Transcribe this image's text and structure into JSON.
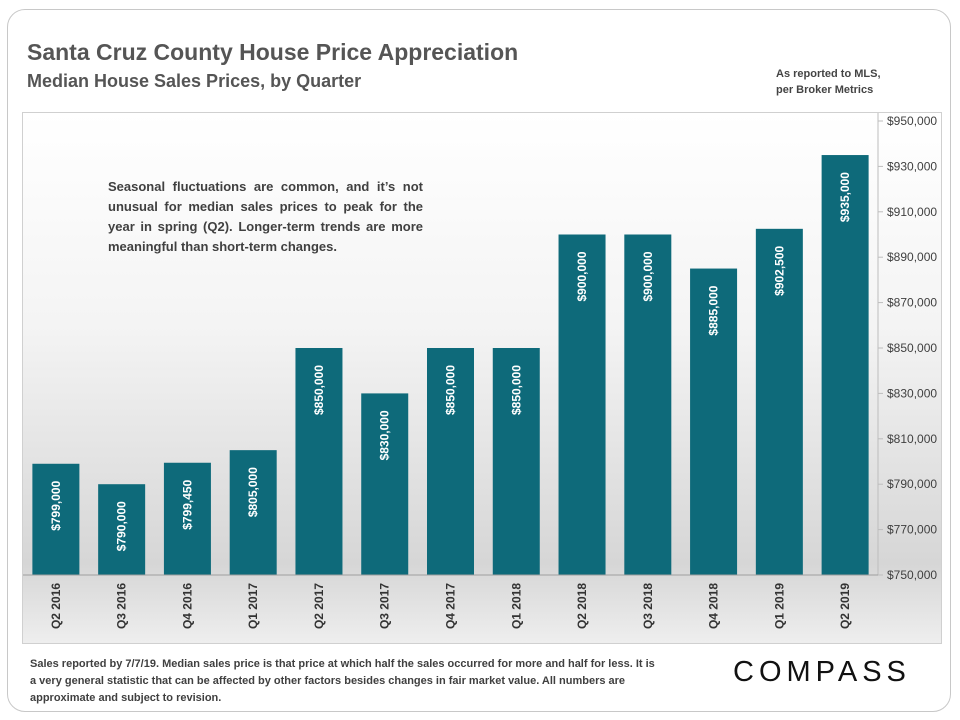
{
  "header": {
    "title": "Santa Cruz County House Price Appreciation",
    "subtitle": "Median House Sales Prices, by Quarter",
    "source_line1": "As reported to MLS,",
    "source_line2": "per Broker Metrics"
  },
  "annotation": "Seasonal fluctuations are common, and it’s not unusual for median sales prices to peak for the year in spring (Q2). Longer-term trends are more meaningful than short-term changes.",
  "footnote": "Sales reported by 7/7/19. Median sales price is that price at which half the sales occurred for more and half for less. It is a very general statistic that can be affected by other factors besides changes in fair market value. All numbers are approximate and subject to revision.",
  "logo": "COMPASS",
  "colors": {
    "bar": "#0e6a7a",
    "text": "#555555"
  },
  "chart_data": {
    "type": "bar",
    "categories": [
      "Q2 2016",
      "Q3 2016",
      "Q4 2016",
      "Q1 2017",
      "Q2 2017",
      "Q3 2017",
      "Q4 2017",
      "Q1 2018",
      "Q2 2018",
      "Q3 2018",
      "Q4 2018",
      "Q1 2019",
      "Q2 2019"
    ],
    "values": [
      799000,
      790000,
      799450,
      805000,
      850000,
      830000,
      850000,
      850000,
      900000,
      900000,
      885000,
      902500,
      935000
    ],
    "data_labels": [
      "$799,000",
      "$790,000",
      "$799,450",
      "$805,000",
      "$850,000",
      "$830,000",
      "$850,000",
      "$850,000",
      "$900,000",
      "$900,000",
      "$885,000",
      "$902,500",
      "$935,000"
    ],
    "ylim": [
      750000,
      950000
    ],
    "y_ticks": [
      750000,
      770000,
      790000,
      810000,
      830000,
      850000,
      870000,
      890000,
      910000,
      930000,
      950000
    ],
    "y_tick_labels": [
      "$750,000",
      "$770,000",
      "$790,000",
      "$810,000",
      "$830,000",
      "$850,000",
      "$870,000",
      "$890,000",
      "$910,000",
      "$930,000",
      "$950,000"
    ],
    "y_axis_position": "right",
    "grid": false,
    "legend": "none"
  }
}
